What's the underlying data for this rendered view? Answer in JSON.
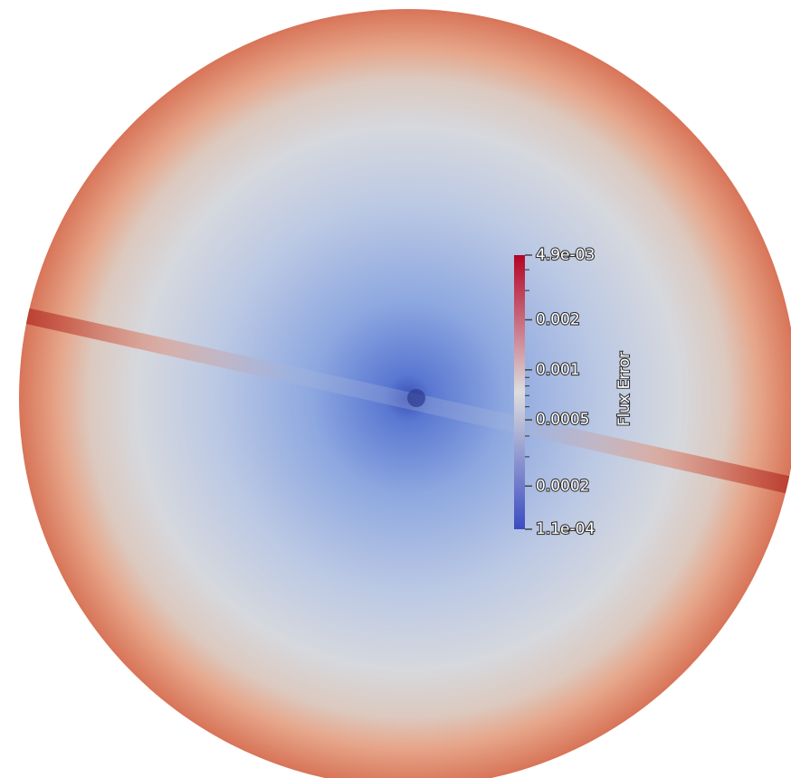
{
  "chart_data": {
    "type": "colorbar",
    "label": "Flux Error",
    "clim": [
      0.00011,
      0.0049
    ],
    "log": true,
    "cticks": [
      {
        "value": 0.0049,
        "label": "4.9e-03"
      },
      0.002,
      0.001,
      0.0005,
      0.0002,
      {
        "value": 0.00011,
        "label": "1.1e-04"
      }
    ],
    "cminor": [
      0.004,
      0.003,
      0.0009,
      0.0008,
      0.0007,
      0.0006,
      0.0004,
      0.0003
    ],
    "colors": [
      "#3b4cc0",
      "#dddddd",
      "#b40426"
    ]
  }
}
